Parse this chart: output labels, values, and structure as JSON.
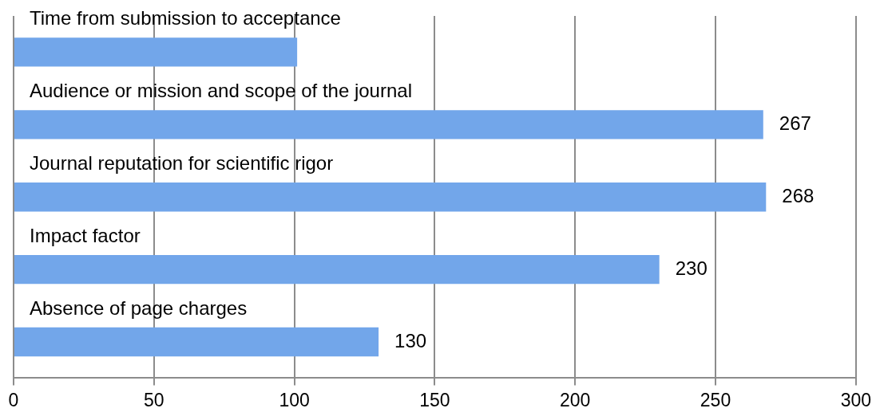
{
  "chart_data": {
    "type": "bar",
    "orientation": "horizontal",
    "categories": [
      "Time from submission to acceptance",
      "Audience or mission and scope of the journal",
      "Journal reputation for scientific rigor",
      "Impact factor",
      "Absence of page charges"
    ],
    "values": [
      101,
      267,
      268,
      230,
      130
    ],
    "color": "#72a6ea",
    "value_labels": [
      null,
      "267",
      "268",
      "230",
      "130"
    ],
    "xlim": [
      0,
      300
    ],
    "xticks": [
      0,
      50,
      100,
      150,
      200,
      250,
      300
    ],
    "grid": "x"
  }
}
